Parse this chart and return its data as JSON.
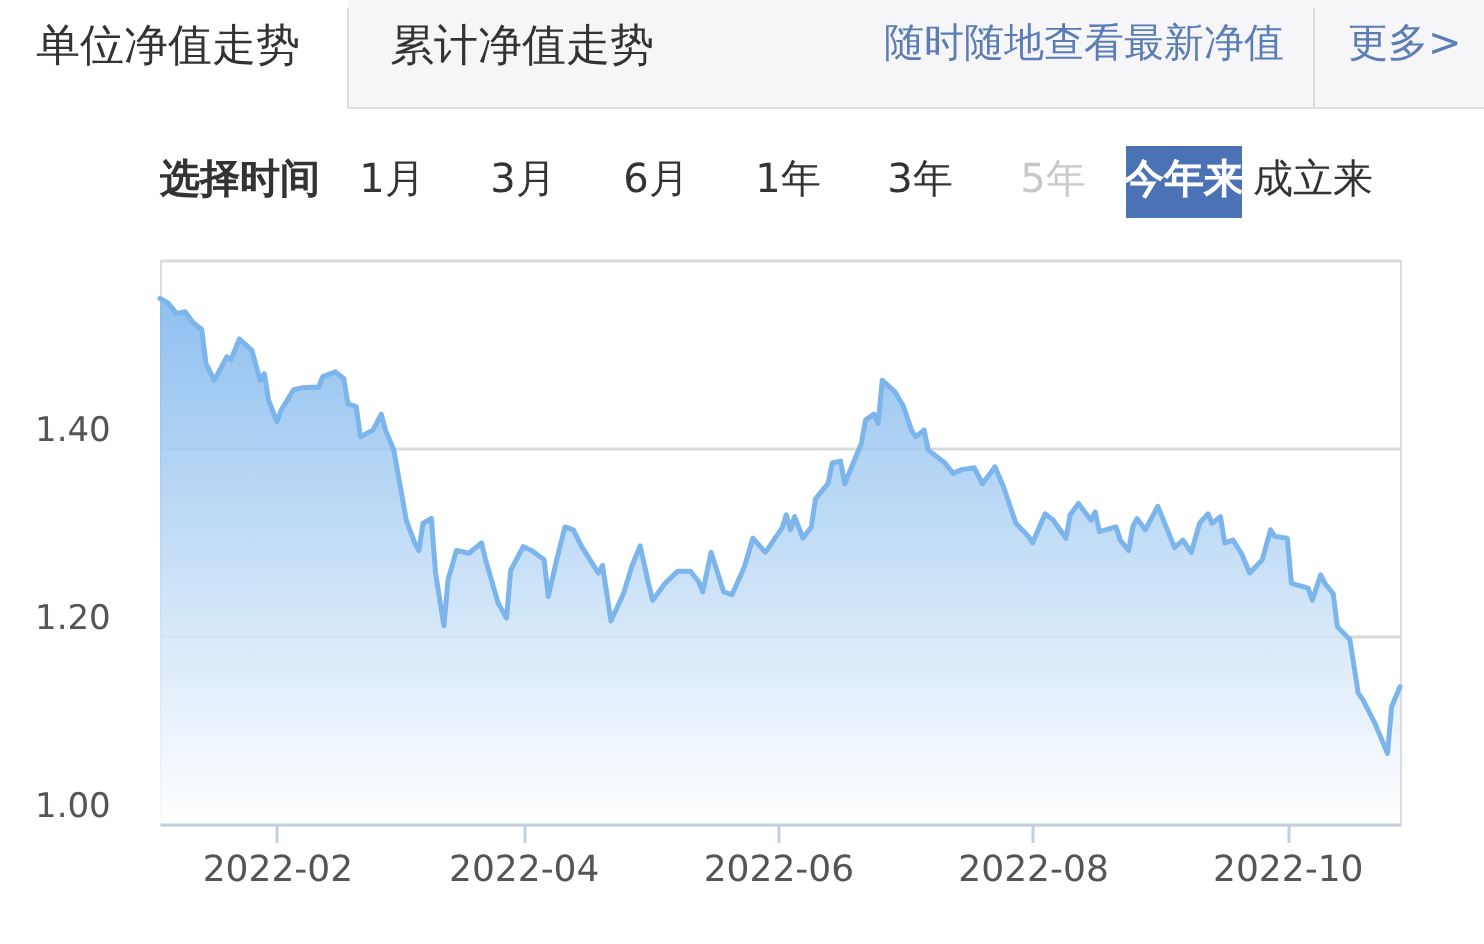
{
  "chart_data": {
    "type": "area",
    "title": "单位净值走势",
    "annotations": [
      "累计净值走势",
      "随时随地查看最新净值",
      "更多>",
      "选择时间",
      "1月",
      "3月",
      "6月",
      "1年",
      "3年",
      "5年",
      "今年来",
      "成立来"
    ],
    "x": [
      "2022-01-04",
      "2022-01-06",
      "2022-01-08",
      "2022-01-10",
      "2022-01-12",
      "2022-01-14",
      "2022-01-15",
      "2022-01-17",
      "2022-01-20",
      "2022-01-21",
      "2022-01-23",
      "2022-01-26",
      "2022-01-28",
      "2022-01-29",
      "2022-01-30",
      "2022-02-01",
      "2022-02-02",
      "2022-02-05",
      "2022-02-07",
      "2022-02-11",
      "2022-02-12",
      "2022-02-15",
      "2022-02-17",
      "2022-02-18",
      "2022-02-20",
      "2022-02-21",
      "2022-02-24",
      "2022-02-26",
      "2022-02-27",
      "2022-03-01",
      "2022-03-04",
      "2022-03-06",
      "2022-03-07",
      "2022-03-08",
      "2022-03-10",
      "2022-03-11",
      "2022-03-13",
      "2022-03-14",
      "2022-03-16",
      "2022-03-19",
      "2022-03-22",
      "2022-03-23",
      "2022-03-26",
      "2022-03-28",
      "2022-03-29",
      "2022-04-01",
      "2022-04-03",
      "2022-04-06",
      "2022-04-07",
      "2022-04-09",
      "2022-04-11",
      "2022-04-13",
      "2022-04-15",
      "2022-04-17",
      "2022-04-19",
      "2022-04-20",
      "2022-04-22",
      "2022-04-25",
      "2022-04-27",
      "2022-04-29",
      "2022-05-01",
      "2022-05-02",
      "2022-05-05",
      "2022-05-08",
      "2022-05-11",
      "2022-05-13",
      "2022-05-14",
      "2022-05-16",
      "2022-05-19",
      "2022-05-21",
      "2022-05-24",
      "2022-05-26",
      "2022-05-29",
      "2022-05-31",
      "2022-06-02",
      "2022-06-03",
      "2022-06-04",
      "2022-06-05",
      "2022-06-07",
      "2022-06-09",
      "2022-06-10",
      "2022-06-13",
      "2022-06-14",
      "2022-06-16",
      "2022-06-17",
      "2022-06-21",
      "2022-06-22",
      "2022-06-24",
      "2022-06-25",
      "2022-06-26",
      "2022-06-29",
      "2022-07-01",
      "2022-07-03",
      "2022-07-04",
      "2022-07-06",
      "2022-07-07",
      "2022-07-11",
      "2022-07-13",
      "2022-07-15",
      "2022-07-18",
      "2022-07-20",
      "2022-07-23",
      "2022-07-25",
      "2022-07-28",
      "2022-07-31",
      "2022-08-01",
      "2022-08-03",
      "2022-08-04",
      "2022-08-06",
      "2022-08-09",
      "2022-08-10",
      "2022-08-12",
      "2022-08-15",
      "2022-08-16",
      "2022-08-17",
      "2022-08-21",
      "2022-08-22",
      "2022-08-24",
      "2022-08-25",
      "2022-08-26",
      "2022-08-28",
      "2022-08-31",
      "2022-09-01",
      "2022-09-04",
      "2022-09-06",
      "2022-09-08",
      "2022-09-10",
      "2022-09-12",
      "2022-09-13",
      "2022-09-15",
      "2022-09-16",
      "2022-09-18",
      "2022-09-20",
      "2022-09-22",
      "2022-09-25",
      "2022-09-27",
      "2022-09-28",
      "2022-10-01",
      "2022-10-02",
      "2022-10-06",
      "2022-10-07",
      "2022-10-09",
      "2022-10-10",
      "2022-10-12",
      "2022-10-13",
      "2022-10-16",
      "2022-10-18",
      "2022-10-19",
      "2022-10-22",
      "2022-10-24",
      "2022-10-25",
      "2022-10-26",
      "2022-10-28"
    ],
    "series": [
      {
        "color": "#7cb5ec",
        "values": [
          1.559,
          1.554,
          1.543,
          1.545,
          1.533,
          1.526,
          1.49,
          1.472,
          1.497,
          1.494,
          1.516,
          1.504,
          1.472,
          1.479,
          1.451,
          1.428,
          1.44,
          1.462,
          1.464,
          1.465,
          1.476,
          1.481,
          1.474,
          1.447,
          1.444,
          1.412,
          1.419,
          1.436,
          1.419,
          1.398,
          1.323,
          1.299,
          1.291,
          1.32,
          1.325,
          1.267,
          1.211,
          1.26,
          1.291,
          1.288,
          1.299,
          1.281,
          1.235,
          1.219,
          1.27,
          1.295,
          1.291,
          1.281,
          1.242,
          1.281,
          1.316,
          1.313,
          1.295,
          1.281,
          1.267,
          1.275,
          1.216,
          1.245,
          1.274,
          1.296,
          1.256,
          1.238,
          1.256,
          1.269,
          1.269,
          1.258,
          1.247,
          1.289,
          1.247,
          1.244,
          1.274,
          1.304,
          1.289,
          1.302,
          1.315,
          1.329,
          1.313,
          1.327,
          1.304,
          1.316,
          1.346,
          1.362,
          1.384,
          1.386,
          1.362,
          1.405,
          1.43,
          1.436,
          1.426,
          1.472,
          1.46,
          1.445,
          1.419,
          1.412,
          1.419,
          1.398,
          1.384,
          1.373,
          1.377,
          1.379,
          1.362,
          1.38,
          1.359,
          1.32,
          1.306,
          1.299,
          1.32,
          1.33,
          1.323,
          1.304,
          1.329,
          1.341,
          1.323,
          1.332,
          1.311,
          1.316,
          1.302,
          1.291,
          1.316,
          1.325,
          1.313,
          1.338,
          1.327,
          1.294,
          1.302,
          1.289,
          1.32,
          1.33,
          1.32,
          1.327,
          1.299,
          1.302,
          1.288,
          1.267,
          1.281,
          1.313,
          1.306,
          1.304,
          1.256,
          1.251,
          1.238,
          1.265,
          1.256,
          1.245,
          1.21,
          1.196,
          1.139,
          1.133,
          1.107,
          1.086,
          1.075,
          1.125,
          1.146
        ]
      }
    ],
    "xlim": [
      "2022-01-04",
      "2022-10-28"
    ],
    "xticks": [
      "2022-02",
      "2022-04",
      "2022-06",
      "2022-08",
      "2022-10"
    ],
    "ylim": [
      1.0,
      1.6
    ],
    "yticks": [
      {
        "value": 1.0,
        "label": "1.00"
      },
      {
        "value": 1.2,
        "label": "1.20"
      },
      {
        "value": 1.4,
        "label": "1.40"
      },
      {
        "value": 1.6,
        "label": null
      }
    ],
    "grid": "y"
  }
}
